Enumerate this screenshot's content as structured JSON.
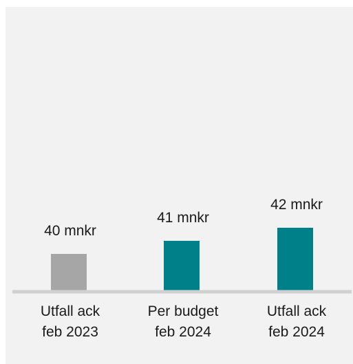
{
  "chart_data": {
    "type": "bar",
    "categories": [
      [
        "Utfall ack",
        "feb 2023"
      ],
      [
        "Per budget",
        "feb 2024"
      ],
      [
        "Utfall ack",
        "feb 2024"
      ]
    ],
    "values": [
      40,
      41,
      42
    ],
    "data_labels": [
      "40 mnkr",
      "41 mnkr",
      "42 mnkr"
    ],
    "colors": [
      "#a6a6a6",
      "#00818a",
      "#00818a"
    ],
    "ylim": [
      0,
      42
    ],
    "title": "",
    "xlabel": "",
    "ylabel": "",
    "grid": false,
    "legend": "none"
  }
}
